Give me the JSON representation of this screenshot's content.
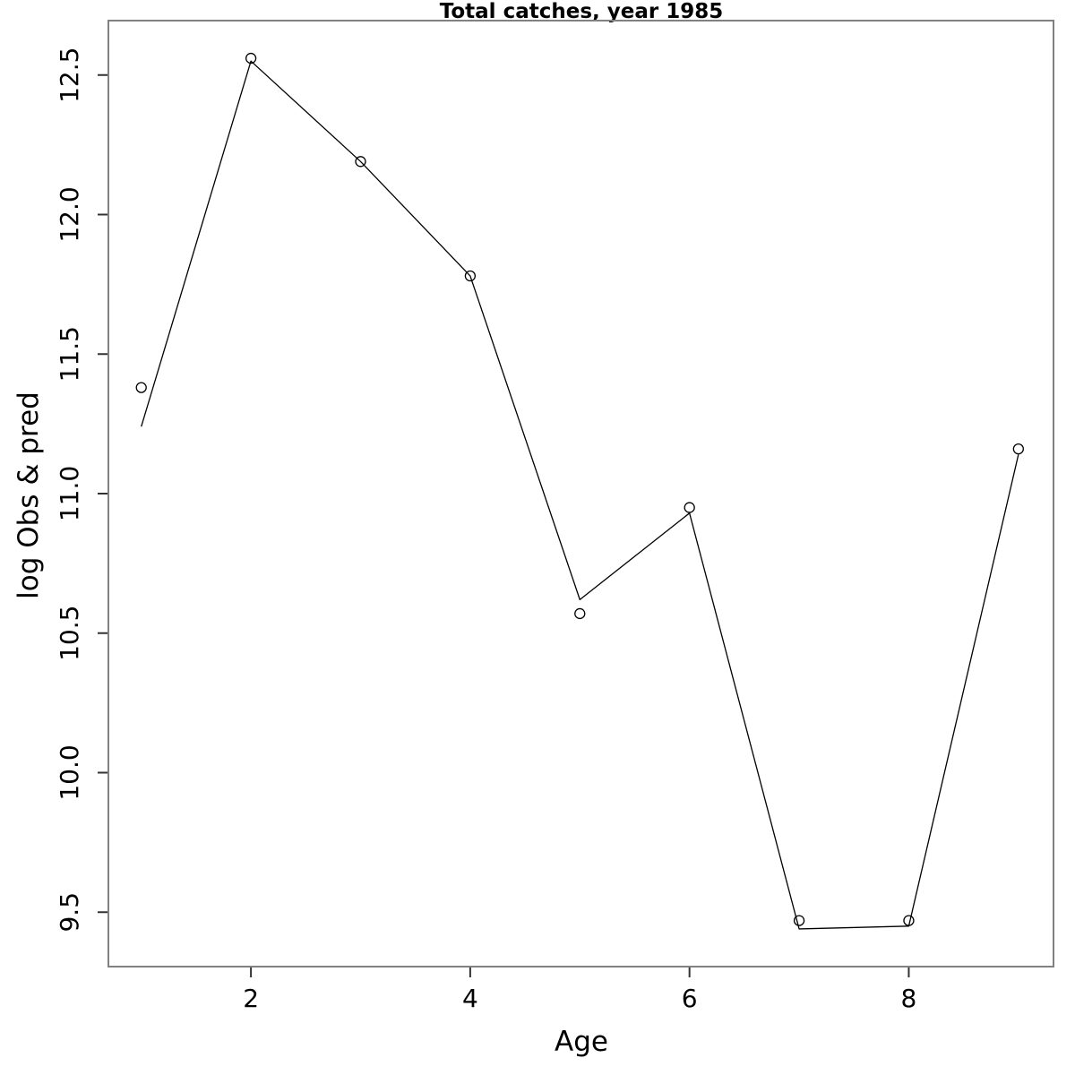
{
  "title": "Total catches, year 1985",
  "chart_data": {
    "type": "line",
    "title": "Total catches, year 1985",
    "xlabel": "Age",
    "ylabel": "log Obs & pred",
    "x": [
      1,
      2,
      3,
      4,
      5,
      6,
      7,
      8,
      9
    ],
    "series": [
      {
        "name": "pred",
        "style": "line",
        "values": [
          11.24,
          12.55,
          12.19,
          11.78,
          10.62,
          10.93,
          9.44,
          9.45,
          11.14
        ]
      },
      {
        "name": "obs",
        "style": "open-circle-points",
        "values": [
          11.38,
          12.56,
          12.19,
          11.78,
          10.57,
          10.95,
          9.47,
          9.47,
          11.16
        ]
      }
    ],
    "xticks": [
      2,
      4,
      6,
      8
    ],
    "xtick_labels": [
      "2",
      "4",
      "6",
      "8"
    ],
    "yticks": [
      9.5,
      10.0,
      10.5,
      11.0,
      11.5,
      12.0,
      12.5
    ],
    "ytick_labels": [
      "9.5",
      "10.0",
      "10.5",
      "11.0",
      "11.5",
      "12.0",
      "12.5"
    ],
    "xlim": [
      0.7,
      9.32
    ],
    "ylim": [
      9.305,
      12.695
    ],
    "grid": false,
    "legend": "none",
    "colors": {
      "line": "#000000",
      "marker": "#000000",
      "box": "#818181",
      "tick": "#333333",
      "text": "#000000",
      "background": "#ffffff"
    }
  }
}
